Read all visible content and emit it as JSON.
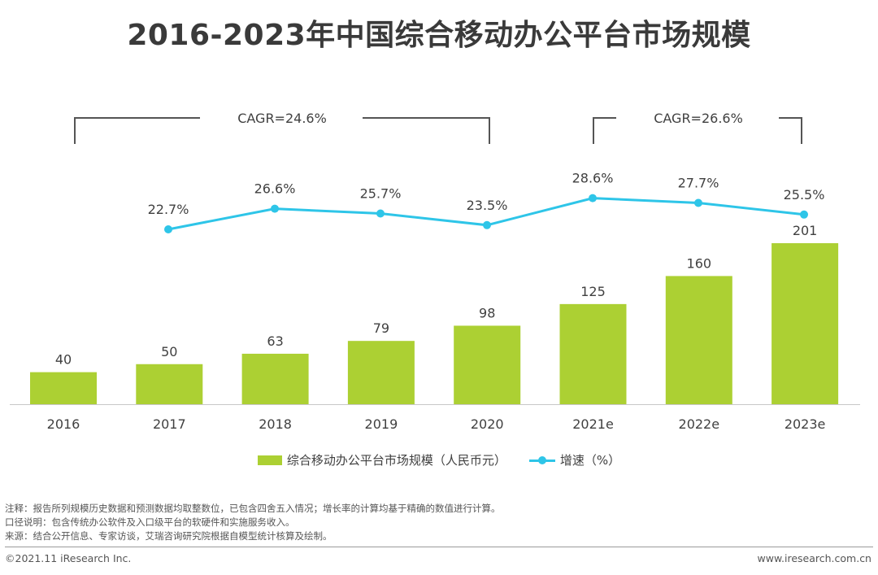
{
  "title": "2016-2023年中国综合移动办公平台市场规模",
  "chart_data": {
    "type": "bar",
    "categories": [
      "2016",
      "2017",
      "2018",
      "2019",
      "2020",
      "2021e",
      "2022e",
      "2023e"
    ],
    "series": [
      {
        "name": "综合移动办公平台市场规模（人民币元）",
        "type": "bar",
        "color": "#acd033",
        "values": [
          40,
          50,
          63,
          79,
          98,
          125,
          160,
          201
        ],
        "labels": [
          "40",
          "50",
          "63",
          "79",
          "98",
          "125",
          "160",
          "201"
        ]
      },
      {
        "name": "增速（%）",
        "type": "line",
        "color": "#2ec5e8",
        "values": [
          null,
          22.7,
          26.6,
          25.7,
          23.5,
          28.6,
          27.7,
          25.5
        ],
        "labels": [
          "",
          "22.7%",
          "26.6%",
          "25.7%",
          "23.5%",
          "28.6%",
          "27.7%",
          "25.5%"
        ]
      }
    ],
    "annotations": [
      {
        "text": "CAGR=24.6%",
        "from": "2016",
        "to": "2020"
      },
      {
        "text": "CAGR=26.6%",
        "from": "2021e",
        "to": "2023e"
      }
    ],
    "legend": "bottom"
  },
  "legend": {
    "bar_label": "综合移动办公平台市场规模（人民币元）",
    "line_label": "增速（%）"
  },
  "notes": [
    "注释：报告所列规模历史数据和预测数据均取整数位，已包含四舍五入情况；增长率的计算均基于精确的数值进行计算。",
    "口径说明：包含传统办公软件及入口级平台的软硬件和实施服务收入。",
    "来源：结合公开信息、专家访谈，艾瑞咨询研究院根据自模型统计核算及绘制。"
  ],
  "footer": {
    "copyright": "©2021.11 iResearch Inc.",
    "website": "www.iresearch.com.cn"
  }
}
